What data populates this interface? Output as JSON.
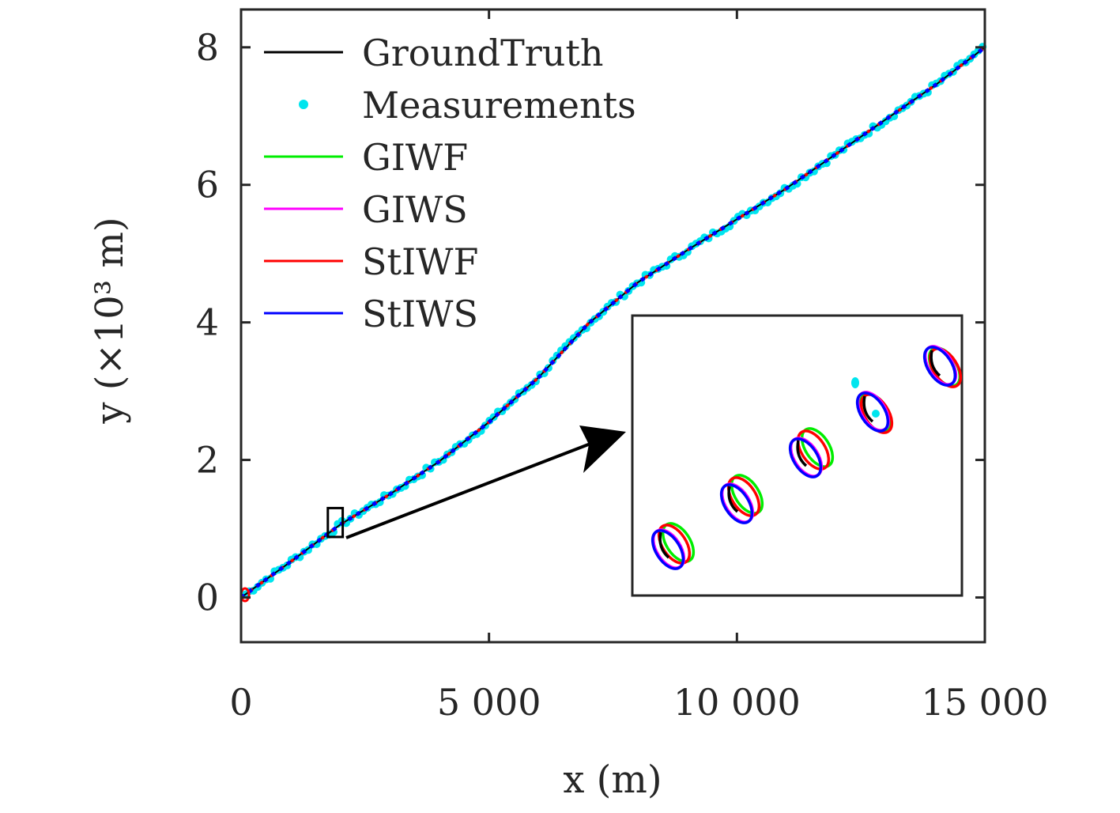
{
  "chart_data": {
    "type": "line",
    "xlabel": "x (m)",
    "ylabel": "y (×10³ m)",
    "xlim": [
      0,
      15000
    ],
    "ylim": [
      -0.65,
      8.55
    ],
    "x_ticks": [
      0,
      5000,
      10000,
      15000
    ],
    "x_tick_labels": [
      "0",
      "5 000",
      "10 000",
      "15 000"
    ],
    "y_ticks": [
      0,
      2,
      4,
      6,
      8
    ],
    "y_tick_labels": [
      "0",
      "2",
      "4",
      "6",
      "8"
    ],
    "grid": false,
    "legend_position": "top-left",
    "series": [
      {
        "name": "GroundTruth",
        "kind": "line",
        "color": "#000000"
      },
      {
        "name": "Measurements",
        "kind": "dots",
        "color": "#00e5ee"
      },
      {
        "name": "GIWF",
        "kind": "line",
        "color": "#00ee00"
      },
      {
        "name": "GIWS",
        "kind": "line",
        "color": "#ff00ff"
      },
      {
        "name": "StIWF",
        "kind": "line",
        "color": "#ff0000"
      },
      {
        "name": "StIWS",
        "kind": "line",
        "color": "#0000ff"
      }
    ],
    "trajectory_polyline": [
      [
        0,
        0
      ],
      [
        1000,
        0.52
      ],
      [
        2000,
        1.06
      ],
      [
        3000,
        1.5
      ],
      [
        4000,
        1.98
      ],
      [
        5000,
        2.55
      ],
      [
        6000,
        3.2
      ],
      [
        7000,
        3.98
      ],
      [
        8000,
        4.58
      ],
      [
        9000,
        5.05
      ],
      [
        10000,
        5.5
      ],
      [
        11000,
        5.95
      ],
      [
        12000,
        6.45
      ],
      [
        13000,
        6.95
      ],
      [
        14000,
        7.45
      ],
      [
        15000,
        8.0
      ]
    ],
    "zoom_region": {
      "x": [
        1750,
        2050
      ],
      "y": [
        0.88,
        1.3
      ]
    },
    "inset": {
      "title": "",
      "extents": [
        {
          "x": [
            8820,
            9220
          ],
          "y": [
            0.52,
            0.99
          ],
          "gt": true,
          "meas": false,
          "giwf": [
            10,
            -5
          ],
          "stiwf": [
            5,
            -3
          ],
          "giws": [
            -2,
            3
          ],
          "stiws": [
            -3,
            4
          ]
        },
        {
          "x": [
            9320,
            9720
          ],
          "y": [
            0.85,
            1.32
          ],
          "gt": true,
          "meas": false,
          "giwf": [
            10,
            -8
          ],
          "stiwf": [
            6,
            -5
          ],
          "giws": [
            -2,
            3
          ],
          "stiws": [
            -3,
            4
          ]
        },
        {
          "x": [
            9820,
            10220
          ],
          "y": [
            1.18,
            1.65
          ],
          "gt": true,
          "meas": false,
          "giwf": [
            12,
            -9
          ],
          "stiwf": [
            7,
            -6
          ],
          "giws": [
            -2,
            3
          ],
          "stiws": [
            -3,
            4
          ]
        },
        {
          "x": [
            10320,
            10720
          ],
          "y": [
            1.51,
            1.98
          ],
          "gt": true,
          "meas": true,
          "giwf": [
            2,
            3
          ],
          "stiwf": [
            3,
            4
          ],
          "giws": [
            -1,
            1
          ],
          "stiws": [
            -2,
            2
          ]
        },
        {
          "x": [
            10820,
            11220
          ],
          "y": [
            1.84,
            2.31
          ],
          "gt": true,
          "meas": false,
          "giwf": [
            4,
            3
          ],
          "stiwf": [
            5,
            4
          ],
          "giws": [
            -1,
            1
          ],
          "stiws": [
            -2,
            2
          ]
        }
      ]
    }
  }
}
